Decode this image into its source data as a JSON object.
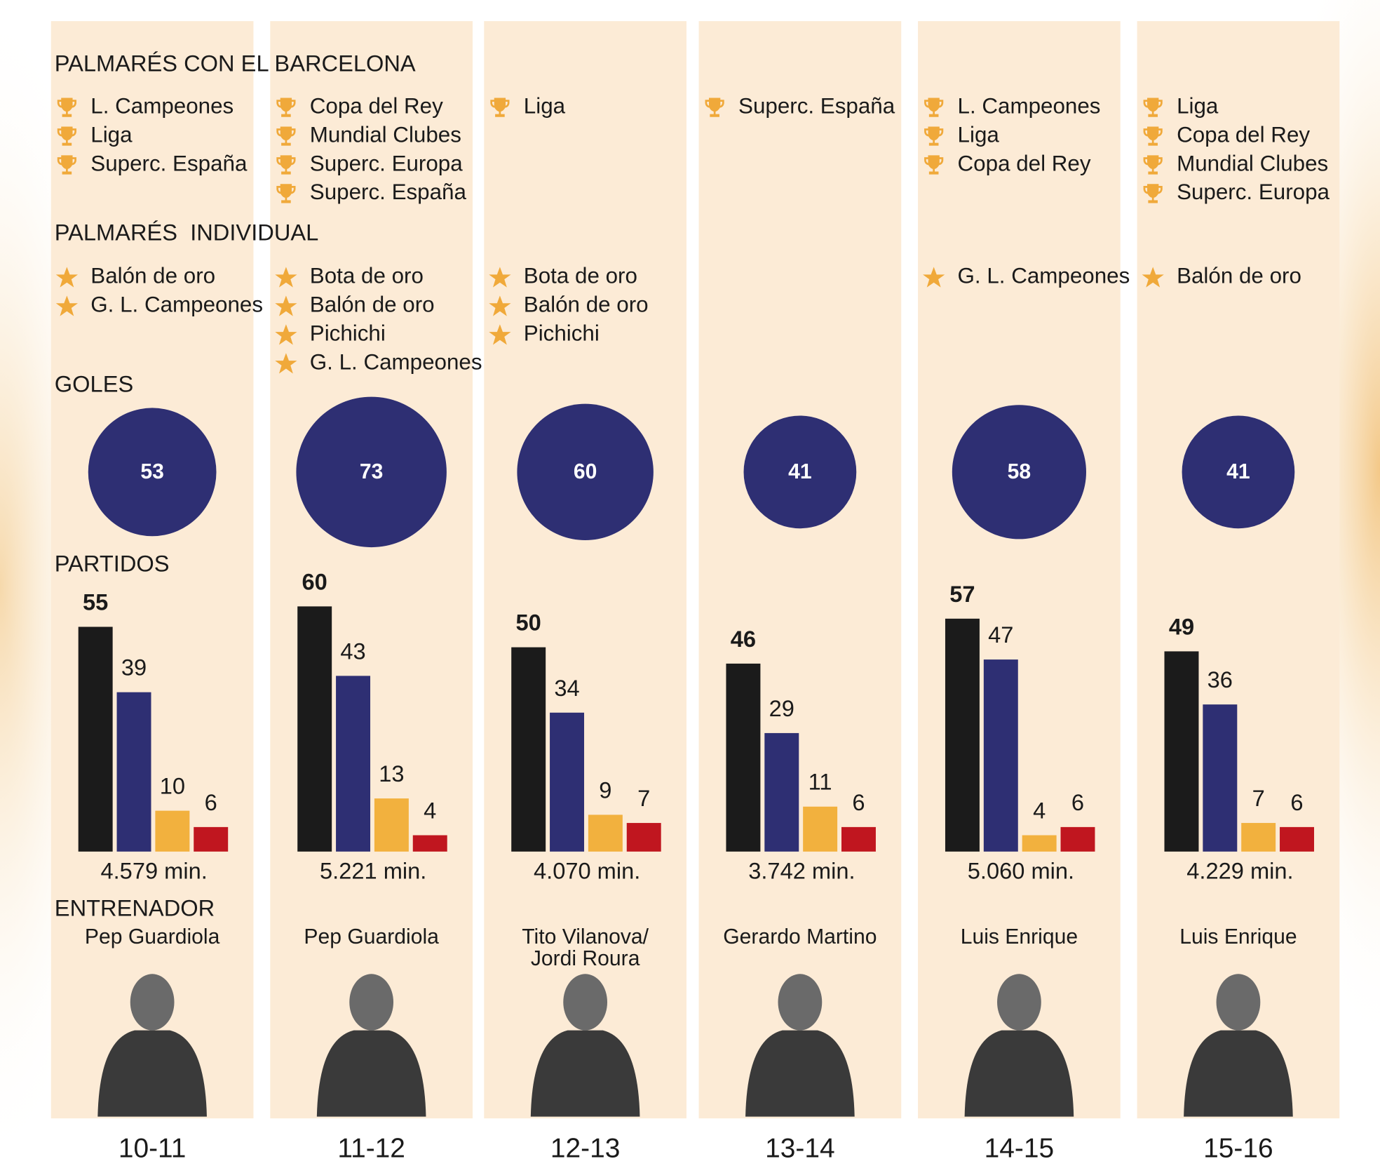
{
  "headings": {
    "club": "PALMARÉS CON EL BARCELONA",
    "individual": "PALMARÉS  INDIVIDUAL",
    "goals": "GOLES",
    "matches": "PARTIDOS",
    "coach": "ENTRENADOR"
  },
  "seasons": [
    {
      "season": "10-11",
      "club_titles": [
        "L. Campeones",
        "Liga",
        "Superc. España"
      ],
      "individual_titles": [
        "Balón de oro",
        "G. L. Campeones"
      ],
      "goals": 53,
      "matches": [
        55,
        39,
        10,
        6
      ],
      "minutes": "4.579 min.",
      "coach": [
        "Pep Guardiola"
      ]
    },
    {
      "season": "11-12",
      "club_titles": [
        "Copa del Rey",
        "Mundial Clubes",
        "Superc. Europa",
        "Superc. España"
      ],
      "individual_titles": [
        "Bota de oro",
        "Balón de oro",
        "Pichichi",
        "G. L. Campeones"
      ],
      "goals": 73,
      "matches": [
        60,
        43,
        13,
        4
      ],
      "minutes": "5.221 min.",
      "coach": [
        "Pep Guardiola"
      ]
    },
    {
      "season": "12-13",
      "club_titles": [
        "Liga"
      ],
      "individual_titles": [
        "Bota de oro",
        "Balón de oro",
        "Pichichi"
      ],
      "goals": 60,
      "matches": [
        50,
        34,
        9,
        7
      ],
      "minutes": "4.070 min.",
      "coach": [
        "Tito Vilanova/",
        "Jordi Roura"
      ]
    },
    {
      "season": "13-14",
      "club_titles": [
        "Superc. España"
      ],
      "individual_titles": [],
      "goals": 41,
      "matches": [
        46,
        29,
        11,
        6
      ],
      "minutes": "3.742 min.",
      "coach": [
        "Gerardo Martino"
      ]
    },
    {
      "season": "14-15",
      "club_titles": [
        "L. Campeones",
        "Liga",
        "Copa del Rey"
      ],
      "individual_titles": [
        "G. L. Campeones"
      ],
      "goals": 58,
      "matches": [
        57,
        47,
        4,
        6
      ],
      "minutes": "5.060 min.",
      "coach": [
        "Luis Enrique"
      ]
    },
    {
      "season": "15-16",
      "club_titles": [
        "Liga",
        "Copa del Rey",
        "Mundial Clubes",
        "Superc. Europa"
      ],
      "individual_titles": [
        "Balón de oro"
      ],
      "goals": 41,
      "matches": [
        49,
        36,
        7,
        6
      ],
      "minutes": "4.229 min.",
      "coach": [
        "Luis Enrique"
      ]
    }
  ]
}
